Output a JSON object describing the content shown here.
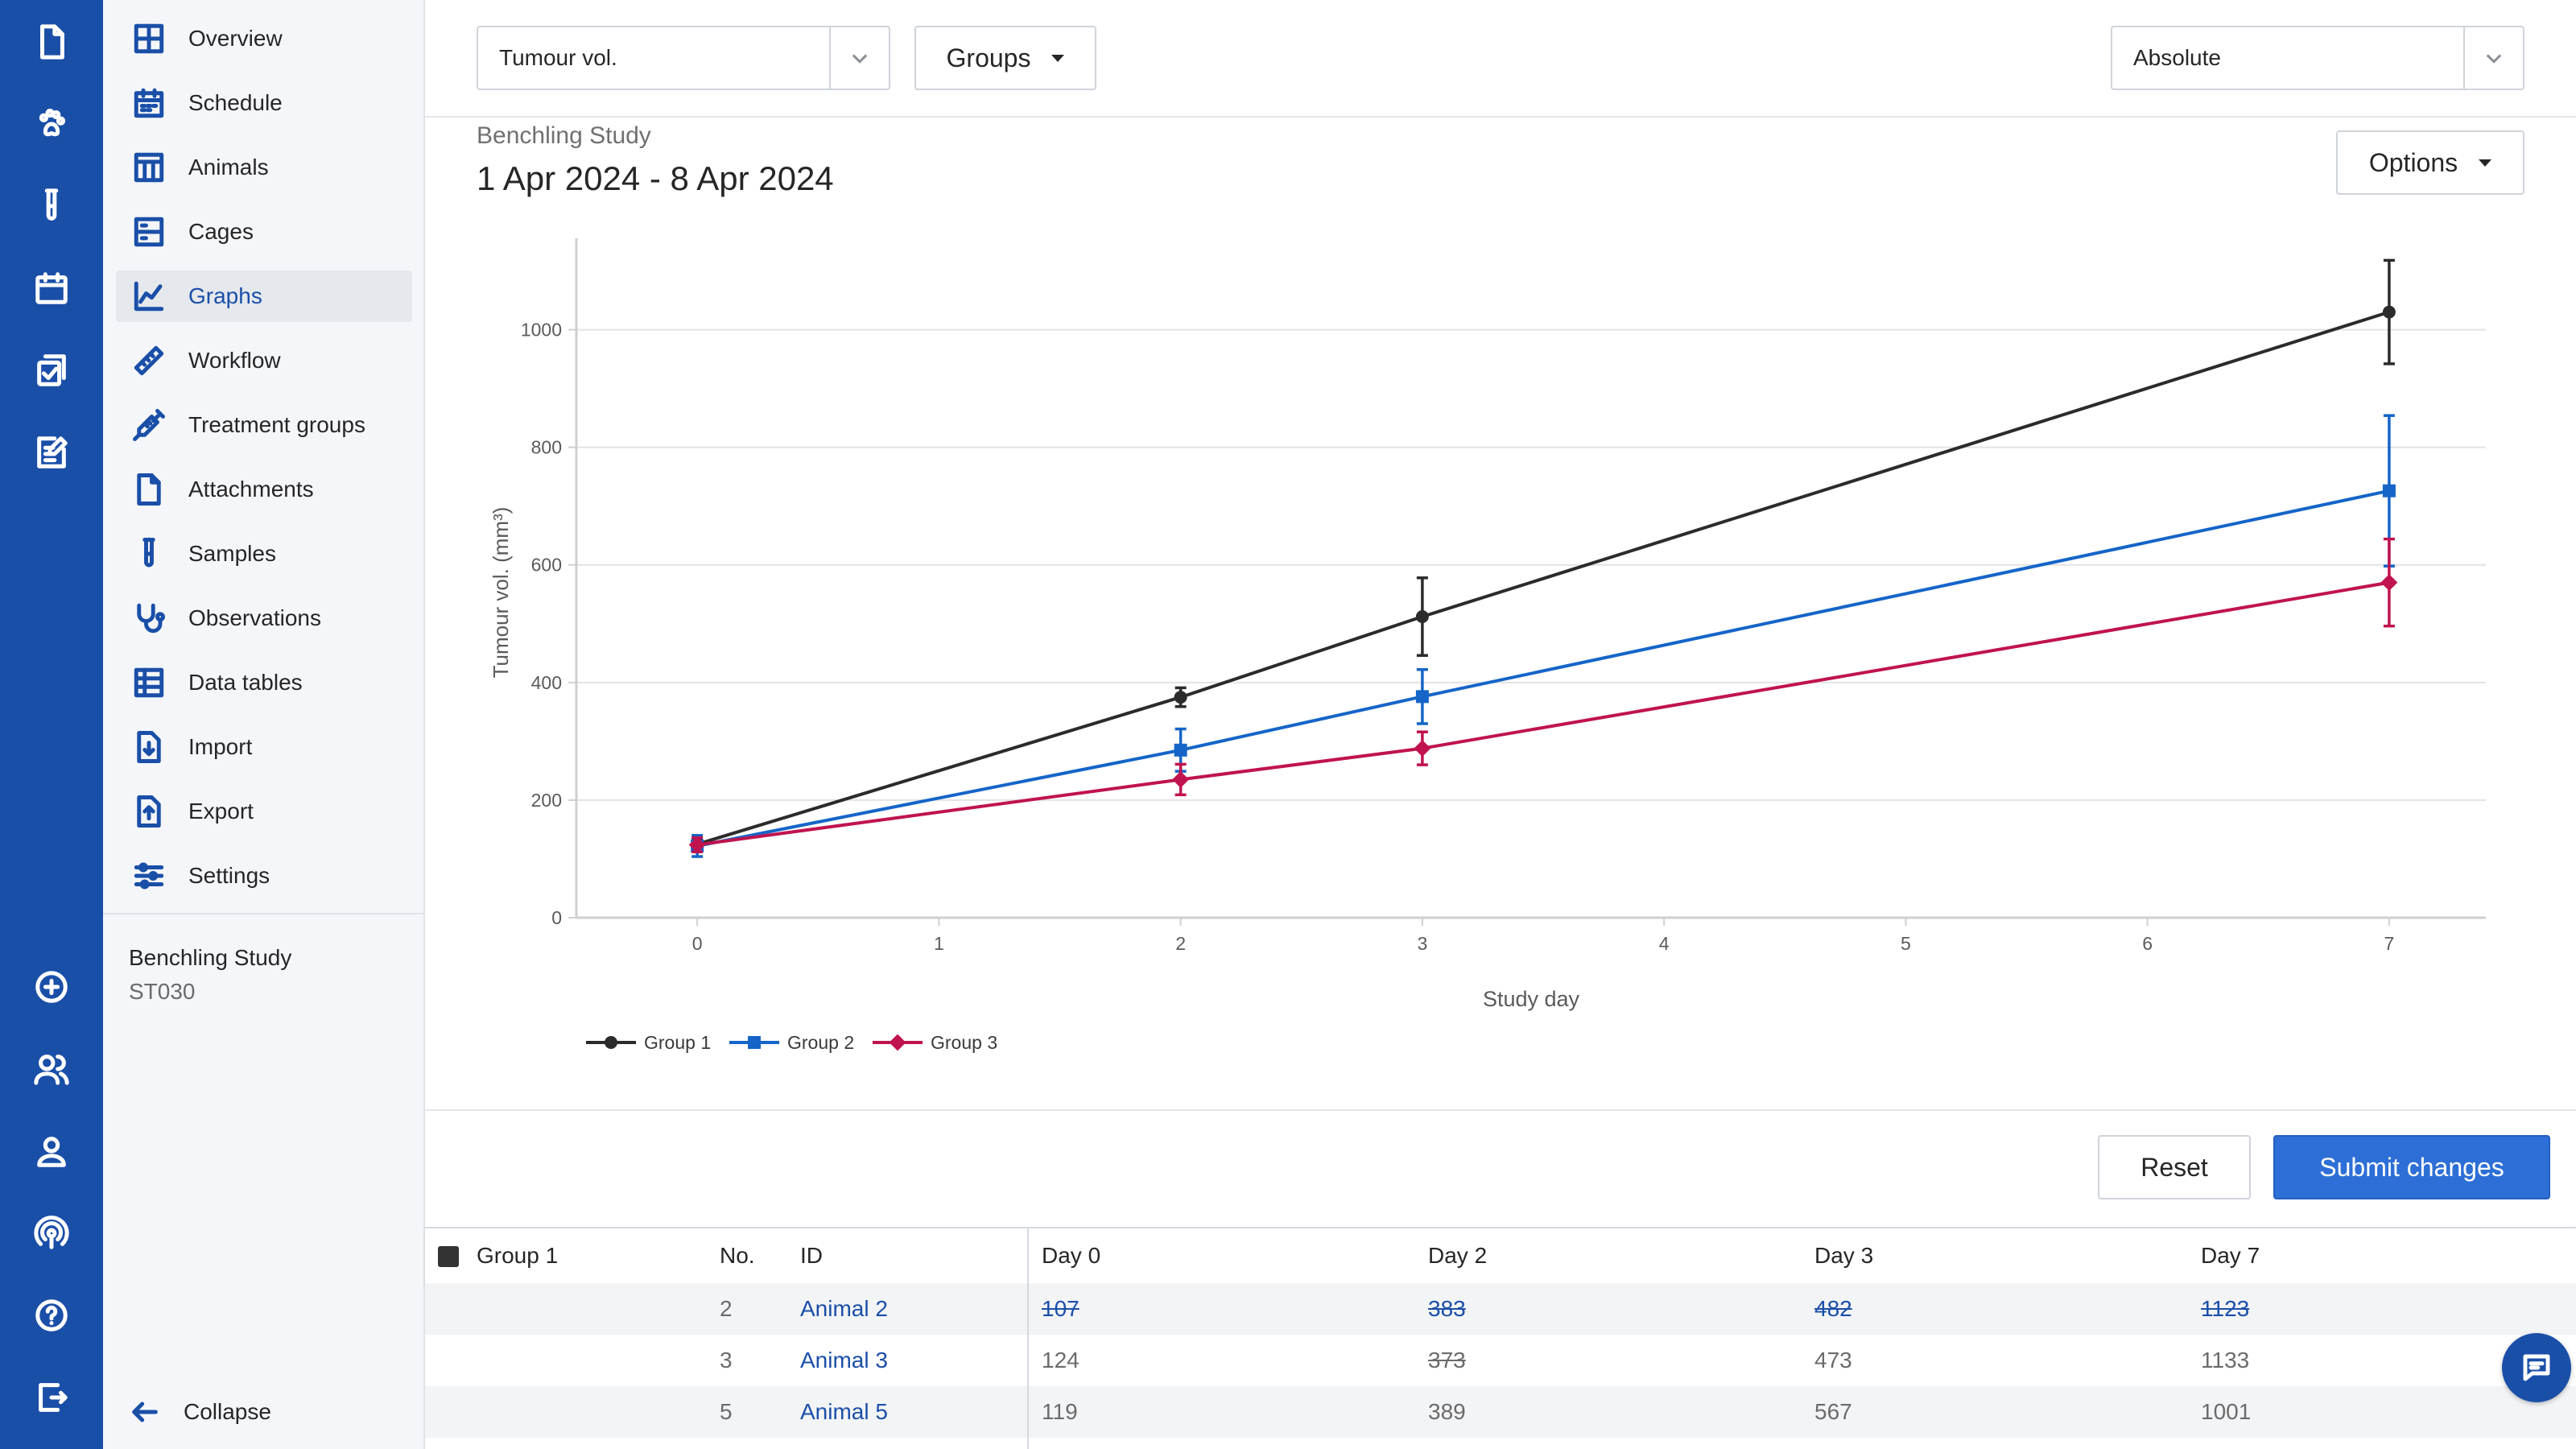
{
  "rail": {
    "top_icons": [
      "document-icon",
      "paw-icon",
      "test-tube-icon",
      "calendar-icon",
      "copy-check-icon",
      "edit-note-icon"
    ],
    "bottom_icons": [
      "plus-circle-icon",
      "users-icon",
      "user-icon",
      "broadcast-icon",
      "help-icon",
      "logout-icon"
    ]
  },
  "sidebar": {
    "items": [
      {
        "label": "Overview",
        "icon": "overview-icon"
      },
      {
        "label": "Schedule",
        "icon": "schedule-icon"
      },
      {
        "label": "Animals",
        "icon": "animals-icon"
      },
      {
        "label": "Cages",
        "icon": "cages-icon"
      },
      {
        "label": "Graphs",
        "icon": "graphs-icon",
        "active": true
      },
      {
        "label": "Workflow",
        "icon": "ruler-icon"
      },
      {
        "label": "Treatment groups",
        "icon": "syringe-icon"
      },
      {
        "label": "Attachments",
        "icon": "attachment-icon"
      },
      {
        "label": "Samples",
        "icon": "test-tube-icon"
      },
      {
        "label": "Observations",
        "icon": "stethoscope-icon"
      },
      {
        "label": "Data tables",
        "icon": "table-icon"
      },
      {
        "label": "Import",
        "icon": "import-icon"
      },
      {
        "label": "Export",
        "icon": "export-icon"
      },
      {
        "label": "Settings",
        "icon": "sliders-icon"
      }
    ],
    "study_name": "Benchling Study",
    "study_code": "ST030",
    "collapse_label": "Collapse"
  },
  "toolbar": {
    "measurement_value": "Tumour vol.",
    "groups_label": "Groups",
    "mode_value": "Absolute",
    "options_label": "Options"
  },
  "chart_header": {
    "subtitle": "Benchling Study",
    "title": "1 Apr 2024 - 8 Apr 2024"
  },
  "chart_data": {
    "type": "line",
    "xlabel": "Study day",
    "ylabel": "Tumour vol. (mm³)",
    "xlim": [
      -0.5,
      7.4
    ],
    "ylim": [
      0,
      1150
    ],
    "x_ticks": [
      0,
      1,
      2,
      3,
      4,
      5,
      6,
      7
    ],
    "y_ticks": [
      0,
      200,
      400,
      600,
      800,
      1000
    ],
    "grid": true,
    "legend_position": "bottom-left",
    "error_bars": true,
    "series": [
      {
        "name": "Group 1",
        "color": "#2b2b2b",
        "marker": "circle",
        "x": [
          0,
          2,
          3,
          7
        ],
        "y": [
          125,
          375,
          512,
          1030
        ],
        "err": [
          8,
          16,
          66,
          88
        ]
      },
      {
        "name": "Group 2",
        "color": "#1565c8",
        "marker": "square",
        "x": [
          0,
          2,
          3,
          7
        ],
        "y": [
          122,
          285,
          376,
          726
        ],
        "err": [
          18,
          36,
          46,
          128
        ]
      },
      {
        "name": "Group 3",
        "color": "#c0134f",
        "marker": "diamond",
        "x": [
          0,
          2,
          3,
          7
        ],
        "y": [
          124,
          235,
          288,
          570
        ],
        "err": [
          12,
          26,
          28,
          74
        ]
      }
    ]
  },
  "actions": {
    "reset_label": "Reset",
    "submit_label": "Submit changes"
  },
  "table": {
    "group_label": "Group 1",
    "group_color": "#333333",
    "headers": {
      "no": "No.",
      "id": "ID",
      "days": [
        "Day 0",
        "Day 2",
        "Day 3",
        "Day 7"
      ]
    },
    "rows": [
      {
        "no": "2",
        "id": "Animal 2",
        "values": [
          "107",
          "383",
          "482",
          "1123"
        ],
        "struck": [
          true,
          true,
          true,
          true
        ]
      },
      {
        "no": "3",
        "id": "Animal 3",
        "values": [
          "124",
          "373",
          "473",
          "1133"
        ],
        "struck": [
          false,
          true,
          false,
          false
        ]
      },
      {
        "no": "5",
        "id": "Animal 5",
        "values": [
          "119",
          "389",
          "567",
          "1001"
        ],
        "struck": [
          false,
          false,
          false,
          false
        ]
      }
    ]
  }
}
